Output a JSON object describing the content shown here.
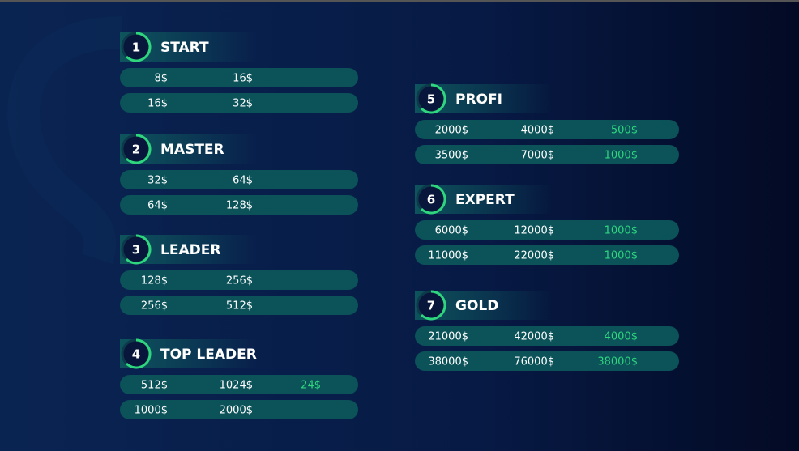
{
  "levels": [
    {
      "number": "1",
      "name": "START",
      "rows": [
        [
          "8$",
          "16$"
        ],
        [
          "16$",
          "32$"
        ]
      ]
    },
    {
      "number": "2",
      "name": "MASTER",
      "rows": [
        [
          "32$",
          "64$"
        ],
        [
          "64$",
          "128$"
        ]
      ]
    },
    {
      "number": "3",
      "name": "LEADER",
      "rows": [
        [
          "128$",
          "256$"
        ],
        [
          "256$",
          "512$"
        ]
      ]
    },
    {
      "number": "4",
      "name": "TOP LEADER",
      "rows": [
        [
          "512$",
          "1024$",
          "24$"
        ],
        [
          "1000$",
          "2000$"
        ]
      ]
    },
    {
      "number": "5",
      "name": "PROFI",
      "rows": [
        [
          "2000$",
          "4000$",
          "500$"
        ],
        [
          "3500$",
          "7000$",
          "1000$"
        ]
      ]
    },
    {
      "number": "6",
      "name": "EXPERT",
      "rows": [
        [
          "6000$",
          "12000$",
          "1000$"
        ],
        [
          "11000$",
          "22000$",
          "1000$"
        ]
      ]
    },
    {
      "number": "7",
      "name": "GOLD",
      "rows": [
        [
          "21000$",
          "42000$",
          "4000$"
        ],
        [
          "38000$",
          "76000$",
          "38000$"
        ]
      ]
    }
  ]
}
